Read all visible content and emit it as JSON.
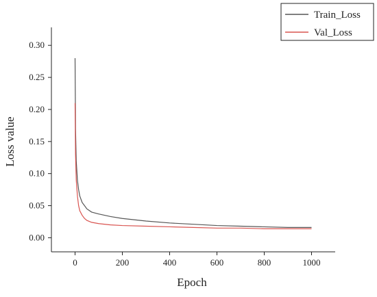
{
  "chart_data": {
    "type": "line",
    "x_label": "Epoch",
    "y_label": "Loss value",
    "x": [
      0,
      2,
      5,
      10,
      15,
      20,
      30,
      40,
      50,
      70,
      100,
      150,
      200,
      300,
      400,
      500,
      600,
      700,
      800,
      900,
      1000
    ],
    "series": [
      {
        "name": "Train_Loss",
        "color": "#555555",
        "values": [
          0.28,
          0.17,
          0.12,
          0.09,
          0.075,
          0.065,
          0.055,
          0.05,
          0.045,
          0.04,
          0.037,
          0.033,
          0.03,
          0.026,
          0.023,
          0.021,
          0.019,
          0.018,
          0.017,
          0.016,
          0.016
        ]
      },
      {
        "name": "Val_Loss",
        "color": "#d9534f",
        "values": [
          0.21,
          0.13,
          0.09,
          0.065,
          0.05,
          0.042,
          0.035,
          0.03,
          0.027,
          0.024,
          0.022,
          0.02,
          0.019,
          0.018,
          0.017,
          0.016,
          0.015,
          0.015,
          0.014,
          0.014,
          0.014
        ]
      }
    ],
    "xlim": [
      -100,
      1100
    ],
    "xticks": [
      0,
      200,
      400,
      600,
      800,
      1000
    ],
    "ylim": [
      -0.022,
      0.328
    ],
    "yticks": [
      {
        "value": 0,
        "label": "0.00"
      },
      {
        "value": 0.05,
        "label": "0.05"
      },
      {
        "value": 0.1,
        "label": "0.10"
      },
      {
        "value": 0.15,
        "label": "0.15"
      },
      {
        "value": 0.2,
        "label": "0.20"
      },
      {
        "value": 0.25,
        "label": "0.25"
      },
      {
        "value": 0.3,
        "label": "0.30"
      }
    ],
    "legend": "upper right"
  }
}
